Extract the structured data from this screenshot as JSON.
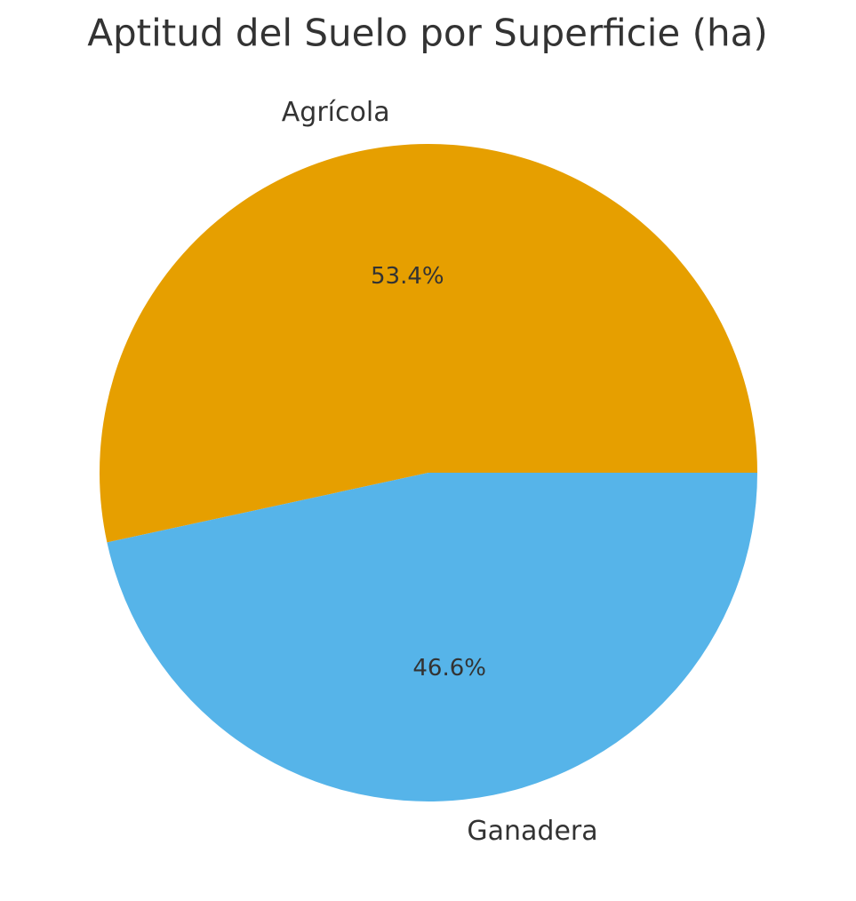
{
  "chart_data": {
    "type": "pie",
    "title": "Aptitud del Suelo por Superficie (ha)",
    "categories": [
      "Agrícola",
      "Ganadera"
    ],
    "values": [
      53.4,
      46.6
    ],
    "value_labels": [
      "53.4%",
      "46.6%"
    ],
    "colors": [
      "#E69F00",
      "#56B4E9"
    ]
  }
}
